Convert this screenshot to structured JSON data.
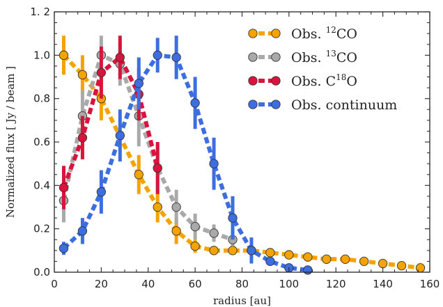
{
  "chart_data": {
    "type": "line",
    "title": "",
    "xlabel": "radius [au]",
    "ylabel": "Normalized flux [ Jy / beam ]",
    "xlim": [
      0,
      160
    ],
    "ylim": [
      0,
      1.2
    ],
    "xticks": [
      "0",
      "20",
      "40",
      "60",
      "80",
      "100",
      "120",
      "140",
      "160"
    ],
    "yticks": [
      "0.0",
      "0.2",
      "0.4",
      "0.6",
      "0.8",
      "1.0",
      "1. 2"
    ],
    "grid": false,
    "legend_position": "top-right",
    "series": [
      {
        "name": "Obs. 12CO",
        "label_prefix": "Obs. ",
        "label_sup": "12",
        "label_suffix": "CO",
        "color": "#f5a300",
        "x": [
          4,
          12,
          20,
          36,
          44,
          52,
          60,
          68,
          76,
          84,
          92,
          100,
          108,
          116,
          124,
          132,
          140,
          148,
          156
        ],
        "y": [
          1.0,
          0.91,
          0.8,
          0.45,
          0.3,
          0.19,
          0.12,
          0.1,
          0.1,
          0.1,
          0.09,
          0.08,
          0.07,
          0.06,
          0.06,
          0.05,
          0.04,
          0.03,
          0.02
        ],
        "err": [
          0.09,
          0.09,
          0.1,
          0.09,
          0.07,
          0.06,
          0.03,
          0.02,
          0.02,
          0.02,
          0.02,
          0.02,
          0.01,
          0.01,
          0.01,
          0.01,
          0.01,
          0.01,
          0.01
        ]
      },
      {
        "name": "Obs. 13CO",
        "label_prefix": "Obs. ",
        "label_sup": "13",
        "label_suffix": "CO",
        "color": "#a9a9a9",
        "x": [
          4,
          12,
          20,
          28,
          36,
          44,
          52,
          60,
          68,
          76
        ],
        "y": [
          0.33,
          0.72,
          1.0,
          0.96,
          0.72,
          0.48,
          0.3,
          0.21,
          0.18,
          0.15
        ],
        "err": [
          0.1,
          0.12,
          0.09,
          0.1,
          0.14,
          0.11,
          0.08,
          0.06,
          0.04,
          0.03
        ]
      },
      {
        "name": "Obs. C18O",
        "label_prefix": "Obs. C",
        "label_sup": "18",
        "label_suffix": "O",
        "color": "#d8143c",
        "x": [
          4,
          12,
          20,
          28,
          36,
          44
        ],
        "y": [
          0.39,
          0.62,
          0.92,
          0.99,
          0.82,
          0.48
        ],
        "err": [
          0.1,
          0.1,
          0.12,
          0.1,
          0.12,
          0.12
        ]
      },
      {
        "name": "Obs. continuum",
        "label_prefix": "Obs. continuum",
        "label_sup": "",
        "label_suffix": "",
        "color": "#3c6ee0",
        "x": [
          4,
          12,
          20,
          28,
          36,
          44,
          52,
          60,
          68,
          76,
          84,
          92,
          100,
          108
        ],
        "y": [
          0.11,
          0.19,
          0.37,
          0.63,
          0.87,
          1.0,
          0.99,
          0.78,
          0.5,
          0.25,
          0.1,
          0.05,
          0.02,
          0.01
        ],
        "err": [
          0.03,
          0.06,
          0.1,
          0.12,
          0.12,
          0.08,
          0.1,
          0.12,
          0.12,
          0.1,
          0.06,
          0.02,
          0.01,
          0.01
        ]
      }
    ]
  }
}
